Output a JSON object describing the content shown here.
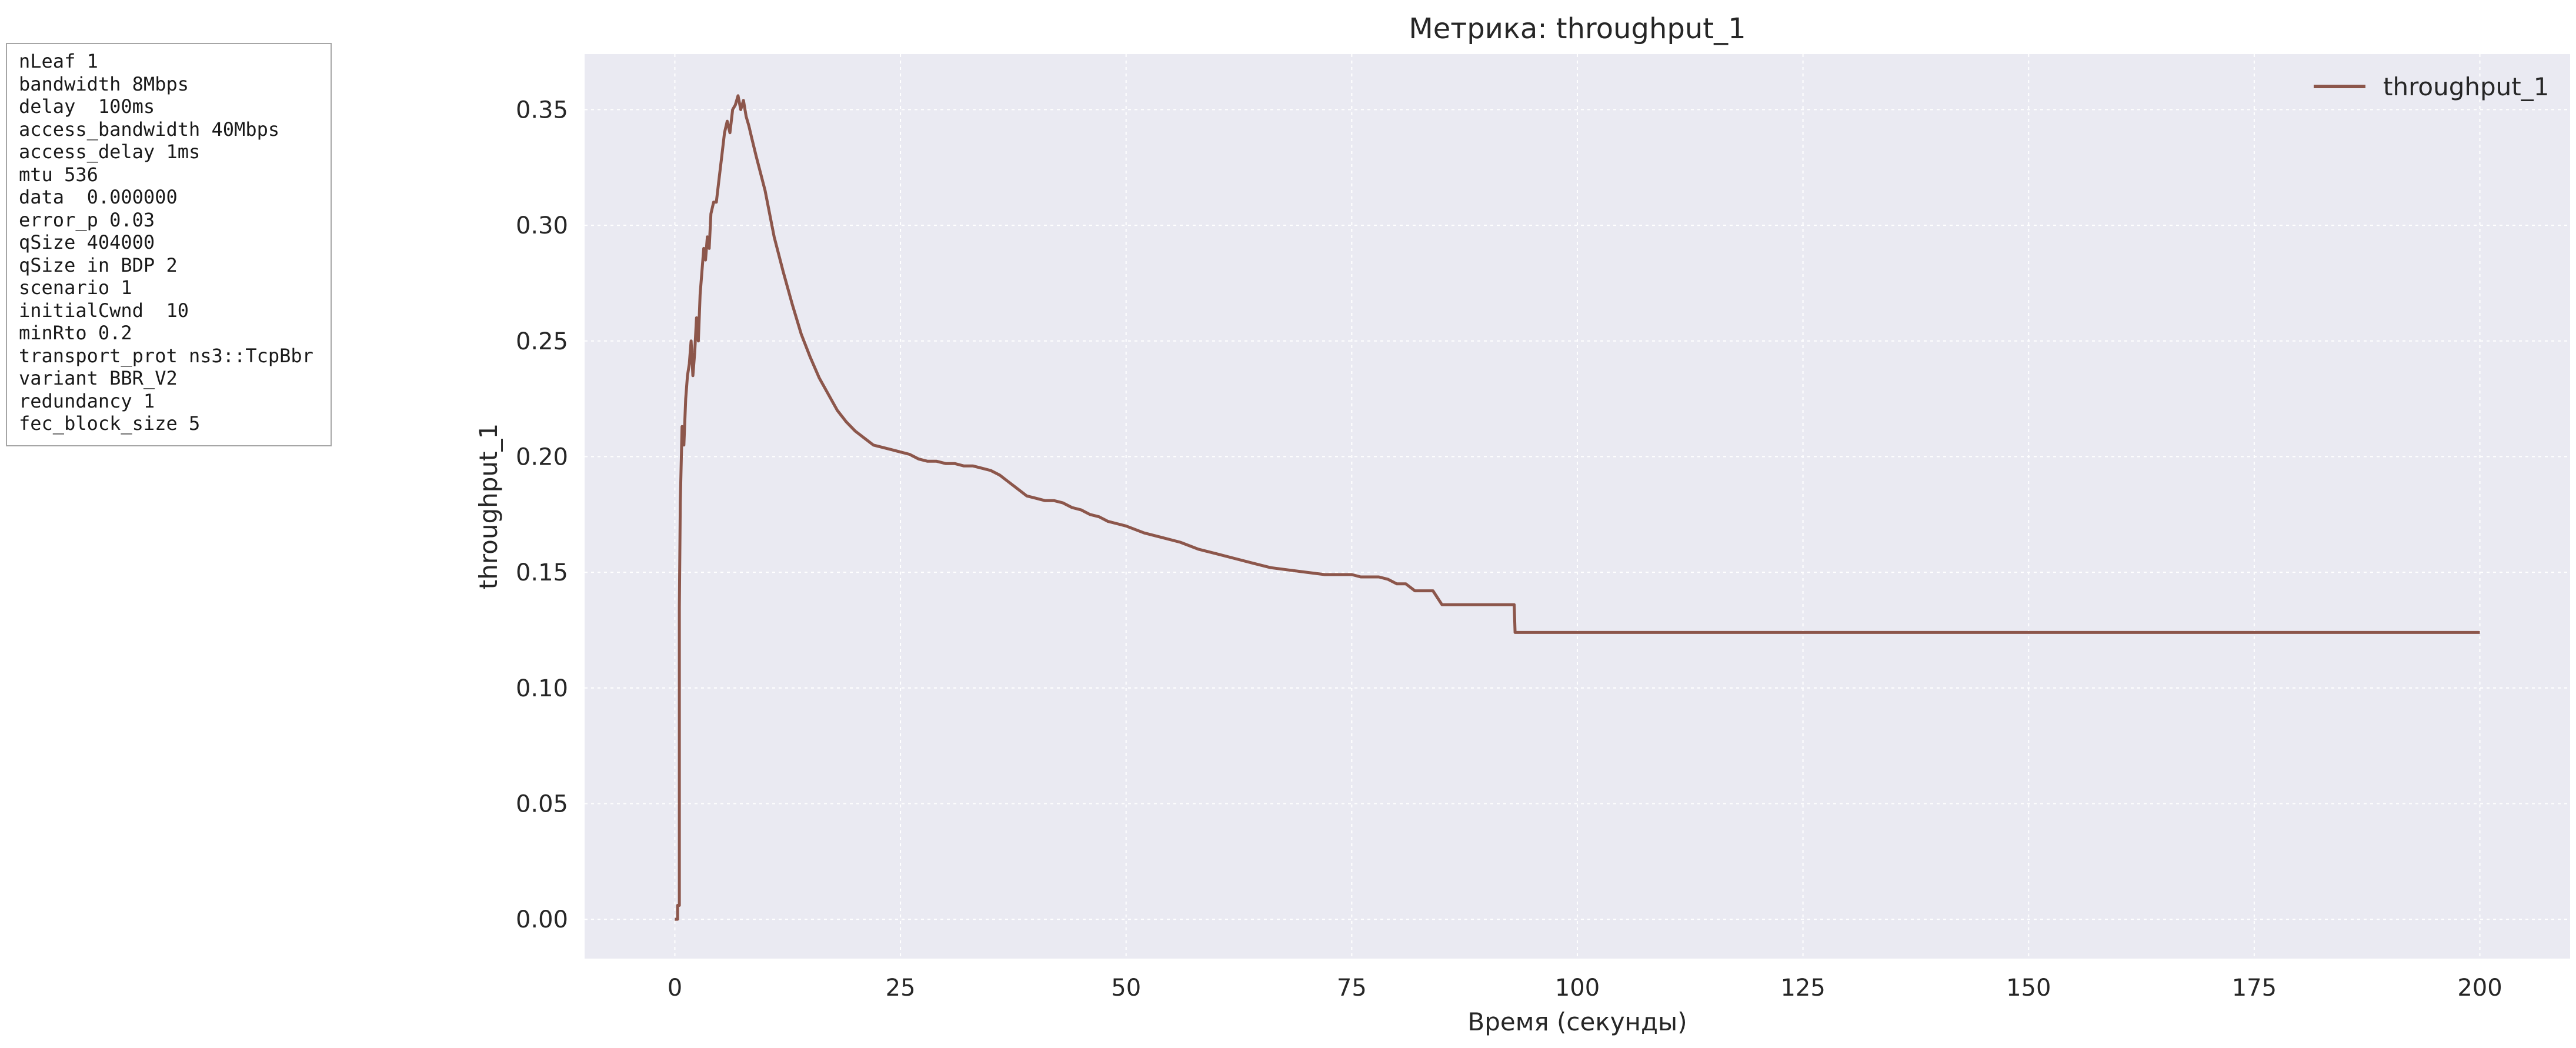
{
  "params": [
    "nLeaf 1",
    "bandwidth 8Mbps",
    "delay  100ms",
    "access_bandwidth 40Mbps",
    "access_delay 1ms",
    "mtu 536",
    "data  0.000000",
    "error_p 0.03",
    "qSize 404000",
    "qSize in BDP 2",
    "scenario 1",
    "initialCwnd  10",
    "minRto 0.2",
    "transport_prot ns3::TcpBbr",
    "variant BBR_V2",
    "redundancy 1",
    "fec_block_size 5"
  ],
  "chart_data": {
    "type": "line",
    "title": "Метрика: throughput_1",
    "xlabel": "Время (секунды)",
    "ylabel": "throughput_1",
    "xlim": [
      -10,
      210
    ],
    "ylim": [
      -0.017,
      0.374
    ],
    "xticks": [
      0,
      25,
      50,
      75,
      100,
      125,
      150,
      175,
      200
    ],
    "yticks": [
      0.0,
      0.05,
      0.1,
      0.15,
      0.2,
      0.25,
      0.3,
      0.35
    ],
    "ytick_labels": [
      "0.00",
      "0.05",
      "0.10",
      "0.15",
      "0.20",
      "0.25",
      "0.30",
      "0.35"
    ],
    "grid": true,
    "legend_position": "top-right",
    "colors": {
      "series": "#8c564b",
      "axes_bg": "#eaeaf2",
      "grid": "#ffffff"
    },
    "series": [
      {
        "name": "throughput_1",
        "x": [
          0,
          0.3,
          0.3,
          0.5,
          0.5,
          0.6,
          0.8,
          1.0,
          1.2,
          1.4,
          1.6,
          1.8,
          2.0,
          2.2,
          2.4,
          2.6,
          2.8,
          3.0,
          3.2,
          3.4,
          3.6,
          3.8,
          4.0,
          4.3,
          4.6,
          4.9,
          5.2,
          5.5,
          5.8,
          6.1,
          6.4,
          6.7,
          7.0,
          7.3,
          7.6,
          7.9,
          8.2,
          8.5,
          9,
          10,
          11,
          12,
          13,
          14,
          15,
          16,
          17,
          18,
          19,
          20,
          21,
          22,
          23,
          24,
          25,
          26,
          27,
          28,
          29,
          30,
          31,
          32,
          33,
          34,
          35,
          36,
          37,
          38,
          39,
          40,
          41,
          42,
          43,
          44,
          45,
          46,
          47,
          48,
          49,
          50,
          52,
          54,
          56,
          58,
          60,
          62,
          64,
          66,
          68,
          70,
          72,
          74,
          75,
          76,
          77,
          78,
          79,
          80,
          81,
          82,
          83,
          84,
          85,
          86,
          87,
          88,
          89,
          90,
          91,
          92,
          93,
          93.1,
          100,
          125,
          150,
          175,
          200
        ],
        "y": [
          0.0,
          0.0,
          0.006,
          0.006,
          0.135,
          0.18,
          0.213,
          0.205,
          0.225,
          0.235,
          0.24,
          0.25,
          0.235,
          0.245,
          0.26,
          0.25,
          0.27,
          0.28,
          0.29,
          0.285,
          0.295,
          0.29,
          0.305,
          0.31,
          0.31,
          0.32,
          0.33,
          0.34,
          0.345,
          0.34,
          0.35,
          0.352,
          0.356,
          0.35,
          0.354,
          0.347,
          0.343,
          0.338,
          0.33,
          0.315,
          0.295,
          0.28,
          0.266,
          0.253,
          0.243,
          0.234,
          0.227,
          0.22,
          0.215,
          0.211,
          0.208,
          0.205,
          0.204,
          0.203,
          0.202,
          0.201,
          0.199,
          0.198,
          0.198,
          0.197,
          0.197,
          0.196,
          0.196,
          0.195,
          0.194,
          0.192,
          0.189,
          0.186,
          0.183,
          0.182,
          0.181,
          0.181,
          0.18,
          0.178,
          0.177,
          0.175,
          0.174,
          0.172,
          0.171,
          0.17,
          0.167,
          0.165,
          0.163,
          0.16,
          0.158,
          0.156,
          0.154,
          0.152,
          0.151,
          0.15,
          0.149,
          0.149,
          0.149,
          0.148,
          0.148,
          0.148,
          0.147,
          0.145,
          0.145,
          0.142,
          0.142,
          0.142,
          0.136,
          0.136,
          0.136,
          0.136,
          0.136,
          0.136,
          0.136,
          0.136,
          0.136,
          0.124,
          0.124,
          0.124,
          0.124,
          0.124,
          0.124
        ]
      }
    ]
  }
}
